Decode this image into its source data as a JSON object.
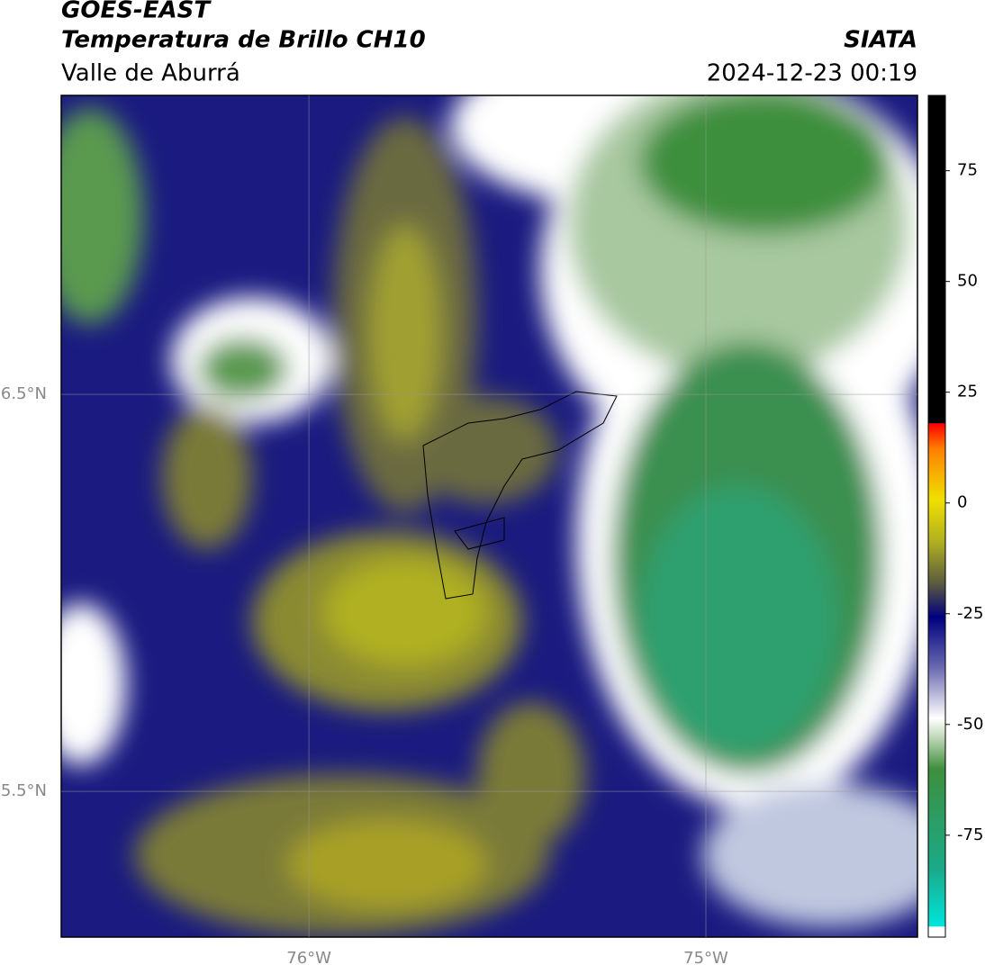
{
  "header": {
    "title": "GOES-EAST",
    "subtitle": "Temperatura de Brillo CH10",
    "region": "Valle de Aburrá",
    "source": "SIATA",
    "datetime": "2024-12-23 00:19"
  },
  "map": {
    "xlim": [
      -76.624,
      -74.467
    ],
    "ylim": [
      5.133,
      7.253
    ],
    "xticks": [
      {
        "value": -76,
        "label": "76°W"
      },
      {
        "value": -75,
        "label": "75°W"
      }
    ],
    "yticks": [
      {
        "value": 6.5,
        "label": "6.5°N"
      },
      {
        "value": 5.5,
        "label": "5.5°N"
      }
    ]
  },
  "colorbar": {
    "lim": [
      -98,
      92
    ],
    "ticks": [
      75,
      50,
      25,
      0,
      -25,
      -50,
      -75
    ]
  }
}
